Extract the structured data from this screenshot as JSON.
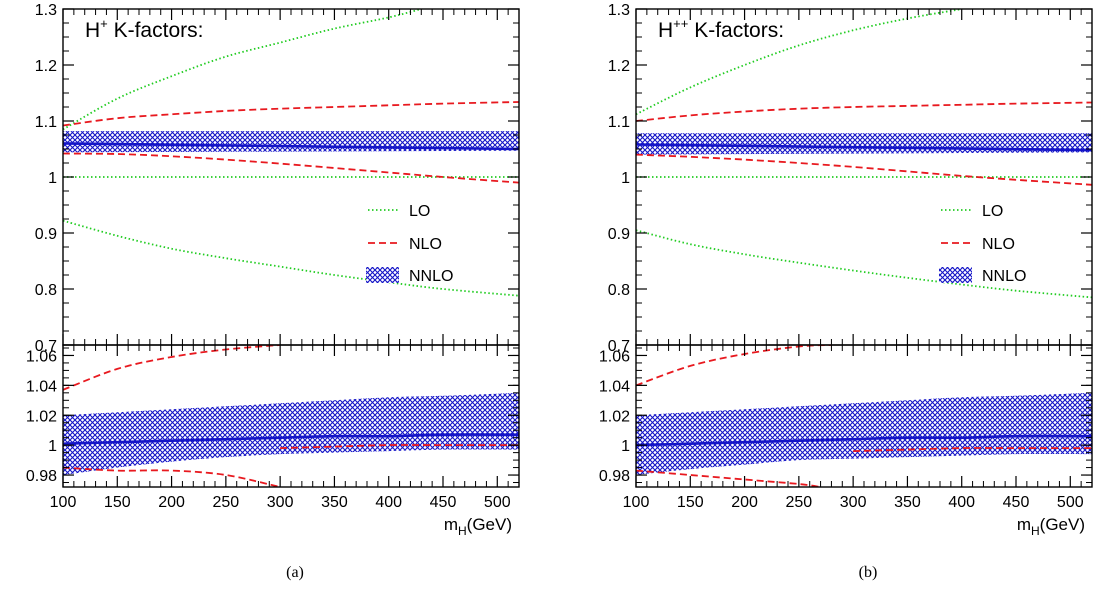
{
  "colors": {
    "lo": "#22cc22",
    "nlo": "#e8191f",
    "nnlo": "#1414c8"
  },
  "chart_data": [
    {
      "id": "a",
      "type": "line",
      "title_main": "H",
      "title_sup": "+",
      "title_rest": " K-factors:",
      "caption": "(a)",
      "xlabel_main": "m",
      "xlabel_sub": "H",
      "xlabel_rest": "(GeV)",
      "xlim": [
        100,
        520
      ],
      "xticks": [
        100,
        150,
        200,
        250,
        300,
        350,
        400,
        450,
        500
      ],
      "xtick_labels": [
        "100",
        "150",
        "200",
        "250",
        "300",
        "350",
        "400",
        "450",
        "500"
      ],
      "legend": [
        {
          "key": "lo",
          "label": "LO"
        },
        {
          "key": "nlo",
          "label": "NLO"
        },
        {
          "key": "nnlo",
          "label": "NNLO"
        }
      ],
      "legend_position": "right",
      "panels": [
        {
          "name": "upper",
          "ylim": [
            0.7,
            1.3
          ],
          "yticks": [
            0.7,
            0.8,
            0.9,
            1.0,
            1.1,
            1.2,
            1.3
          ],
          "ytick_labels": [
            "0.7",
            "0.8",
            "0.9",
            "1",
            "1.1",
            "1.2",
            "1.3"
          ],
          "series": [
            {
              "key": "lo",
              "style": "dotted",
              "x": [
                100,
                150,
                200,
                250,
                300,
                350,
                400,
                430
              ],
              "y": [
                1.085,
                1.14,
                1.18,
                1.215,
                1.24,
                1.265,
                1.285,
                1.3
              ]
            },
            {
              "key": "lo",
              "style": "dotted",
              "x": [
                100,
                520
              ],
              "y": [
                1.0,
                1.0
              ]
            },
            {
              "key": "lo",
              "style": "dotted",
              "x": [
                100,
                150,
                200,
                250,
                300,
                350,
                400,
                450,
                520
              ],
              "y": [
                0.922,
                0.895,
                0.872,
                0.855,
                0.84,
                0.825,
                0.812,
                0.8,
                0.788
              ]
            },
            {
              "key": "nlo",
              "style": "dashed",
              "x": [
                100,
                150,
                200,
                250,
                300,
                350,
                400,
                450,
                520
              ],
              "y": [
                1.092,
                1.105,
                1.112,
                1.118,
                1.122,
                1.125,
                1.128,
                1.131,
                1.134
              ]
            },
            {
              "key": "nlo",
              "style": "dashed",
              "x": [
                100,
                150,
                200,
                250,
                300,
                350,
                400,
                450,
                520
              ],
              "y": [
                1.042,
                1.041,
                1.037,
                1.031,
                1.024,
                1.016,
                1.008,
                1.0,
                0.99
              ]
            }
          ],
          "band": {
            "key": "nnlo",
            "x": [
              100,
              520
            ],
            "y_low": [
              1.044,
              1.047
            ],
            "y_high": [
              1.082,
              1.082
            ],
            "y_central": [
              1.06,
              1.05
            ]
          }
        },
        {
          "name": "lower",
          "ylim": [
            0.972,
            1.067
          ],
          "yticks": [
            0.98,
            1.0,
            1.02,
            1.04,
            1.06
          ],
          "ytick_labels": [
            "0.98",
            "1",
            "1.02",
            "1.04",
            "1.06"
          ],
          "series": [
            {
              "key": "nlo",
              "style": "dashed",
              "x": [
                100,
                150,
                200,
                250,
                300
              ],
              "y": [
                1.037,
                1.051,
                1.059,
                1.064,
                1.067
              ]
            },
            {
              "key": "nlo",
              "style": "dashed",
              "x": [
                100,
                150,
                200,
                250,
                300
              ],
              "y": [
                0.985,
                0.983,
                0.983,
                0.98,
                0.972
              ]
            },
            {
              "key": "nlo",
              "style": "dashed",
              "x": [
                300,
                350,
                400,
                450,
                520
              ],
              "y": [
                0.998,
                0.999,
                1.0,
                1.0,
                1.0
              ]
            }
          ],
          "band": {
            "key": "nnlo",
            "x": [
              100,
              150,
              200,
              250,
              300,
              350,
              400,
              450,
              520
            ],
            "y_low": [
              0.98,
              0.985,
              0.989,
              0.992,
              0.994,
              0.995,
              0.996,
              0.997,
              0.997
            ],
            "y_high": [
              1.02,
              1.022,
              1.024,
              1.026,
              1.028,
              1.03,
              1.032,
              1.033,
              1.035
            ],
            "y_central": [
              1.001,
              1.002,
              1.003,
              1.004,
              1.005,
              1.006,
              1.006,
              1.007,
              1.007
            ]
          }
        }
      ]
    },
    {
      "id": "b",
      "type": "line",
      "title_main": "H",
      "title_sup": "++",
      "title_rest": " K-factors:",
      "caption": "(b)",
      "xlabel_main": "m",
      "xlabel_sub": "H",
      "xlabel_rest": "(GeV)",
      "xlim": [
        100,
        520
      ],
      "xticks": [
        100,
        150,
        200,
        250,
        300,
        350,
        400,
        450,
        500
      ],
      "xtick_labels": [
        "100",
        "150",
        "200",
        "250",
        "300",
        "350",
        "400",
        "450",
        "500"
      ],
      "legend": [
        {
          "key": "lo",
          "label": "LO"
        },
        {
          "key": "nlo",
          "label": "NLO"
        },
        {
          "key": "nnlo",
          "label": "NNLO"
        }
      ],
      "legend_position": "right",
      "panels": [
        {
          "name": "upper",
          "ylim": [
            0.7,
            1.3
          ],
          "yticks": [
            0.7,
            0.8,
            0.9,
            1.0,
            1.1,
            1.2,
            1.3
          ],
          "ytick_labels": [
            "0.7",
            "0.8",
            "0.9",
            "1",
            "1.1",
            "1.2",
            "1.3"
          ],
          "series": [
            {
              "key": "lo",
              "style": "dotted",
              "x": [
                100,
                150,
                200,
                250,
                300,
                350,
                400
              ],
              "y": [
                1.112,
                1.16,
                1.2,
                1.235,
                1.262,
                1.283,
                1.3
              ]
            },
            {
              "key": "lo",
              "style": "dotted",
              "x": [
                100,
                520
              ],
              "y": [
                1.0,
                1.0
              ]
            },
            {
              "key": "lo",
              "style": "dotted",
              "x": [
                100,
                150,
                200,
                250,
                300,
                350,
                400,
                450,
                520
              ],
              "y": [
                0.905,
                0.88,
                0.862,
                0.847,
                0.833,
                0.82,
                0.808,
                0.797,
                0.785
              ]
            },
            {
              "key": "nlo",
              "style": "dashed",
              "x": [
                100,
                150,
                200,
                250,
                300,
                350,
                400,
                450,
                520
              ],
              "y": [
                1.1,
                1.11,
                1.117,
                1.122,
                1.125,
                1.127,
                1.129,
                1.131,
                1.133
              ]
            },
            {
              "key": "nlo",
              "style": "dashed",
              "x": [
                100,
                150,
                200,
                250,
                300,
                350,
                400,
                450,
                520
              ],
              "y": [
                1.04,
                1.036,
                1.031,
                1.025,
                1.018,
                1.01,
                1.002,
                0.995,
                0.986
              ]
            }
          ],
          "band": {
            "key": "nnlo",
            "x": [
              100,
              520
            ],
            "y_low": [
              1.04,
              1.044
            ],
            "y_high": [
              1.078,
              1.078
            ],
            "y_central": [
              1.058,
              1.048
            ]
          }
        },
        {
          "name": "lower",
          "ylim": [
            0.972,
            1.067
          ],
          "yticks": [
            0.98,
            1.0,
            1.02,
            1.04,
            1.06
          ],
          "ytick_labels": [
            "0.98",
            "1",
            "1.02",
            "1.04",
            "1.06"
          ],
          "series": [
            {
              "key": "nlo",
              "style": "dashed",
              "x": [
                100,
                150,
                200,
                250,
                280
              ],
              "y": [
                1.04,
                1.053,
                1.061,
                1.066,
                1.067
              ]
            },
            {
              "key": "nlo",
              "style": "dashed",
              "x": [
                100,
                150,
                200,
                250,
                270
              ],
              "y": [
                0.983,
                0.98,
                0.977,
                0.974,
                0.972
              ]
            },
            {
              "key": "nlo",
              "style": "dashed",
              "x": [
                300,
                350,
                400,
                450,
                520
              ],
              "y": [
                0.996,
                0.997,
                0.998,
                0.998,
                0.998
              ]
            }
          ],
          "band": {
            "key": "nnlo",
            "x": [
              100,
              150,
              200,
              250,
              300,
              350,
              400,
              450,
              520
            ],
            "y_low": [
              0.98,
              0.984,
              0.987,
              0.99,
              0.991,
              0.992,
              0.993,
              0.994,
              0.994
            ],
            "y_high": [
              1.02,
              1.022,
              1.024,
              1.026,
              1.028,
              1.03,
              1.032,
              1.033,
              1.035
            ],
            "y_central": [
              1.0,
              1.001,
              1.002,
              1.003,
              1.004,
              1.005,
              1.005,
              1.006,
              1.006
            ]
          }
        }
      ]
    }
  ]
}
